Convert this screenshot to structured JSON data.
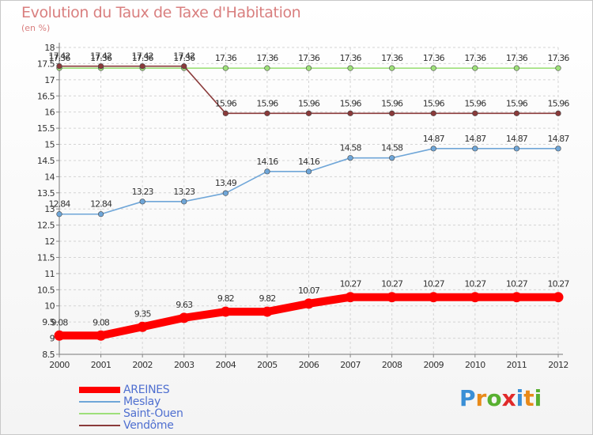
{
  "title": "Evolution du Taux de Taxe d'Habitation",
  "subtitle": "(en %)",
  "logo": {
    "letters": [
      "P",
      "r",
      "o",
      "x",
      "i",
      "t",
      "i"
    ],
    "colors": [
      "#3a8fd6",
      "#e88a1a",
      "#58b030",
      "#e02a2a",
      "#3a8fd6",
      "#e88a1a",
      "#58b030"
    ]
  },
  "chart_data": {
    "type": "line",
    "title": "Evolution du Taux de Taxe d'Habitation",
    "ylabel": "(en %)",
    "xlabel": "",
    "x": [
      "2000",
      "2001",
      "2002",
      "2003",
      "2004",
      "2005",
      "2006",
      "2007",
      "2008",
      "2009",
      "2010",
      "2011",
      "2012"
    ],
    "ylim": [
      8.5,
      18
    ],
    "yticks": [
      "8.5",
      "9",
      "9.5",
      "10",
      "10.5",
      "11",
      "11.5",
      "12",
      "12.5",
      "13",
      "13.5",
      "14",
      "14.5",
      "15",
      "15.5",
      "16",
      "16.5",
      "17",
      "17.5",
      "18"
    ],
    "grid": true,
    "legend_position": "bottom-left",
    "series": [
      {
        "name": "AREINES",
        "color": "#ff0000",
        "values": [
          9.08,
          9.08,
          9.35,
          9.63,
          9.82,
          9.82,
          10.07,
          10.27,
          10.27,
          10.27,
          10.27,
          10.27,
          10.27
        ],
        "labels": [
          "9.08",
          "9.08",
          "9.35",
          "9.63",
          "9.82",
          "9.82",
          "10.07",
          "10.27",
          "10.27",
          "10.27",
          "10.27",
          "10.27",
          "10.27"
        ]
      },
      {
        "name": "Meslay",
        "color": "#6fa6d8",
        "values": [
          12.84,
          12.84,
          13.23,
          13.23,
          13.49,
          14.16,
          14.16,
          14.58,
          14.58,
          14.87,
          14.87,
          14.87,
          14.87
        ],
        "labels": [
          "12.84",
          "12.84",
          "13.23",
          "13.23",
          "13.49",
          "14.16",
          "14.16",
          "14.58",
          "14.58",
          "14.87",
          "14.87",
          "14.87",
          "14.87"
        ]
      },
      {
        "name": "Saint-Ouen",
        "color": "#9ee07a",
        "values": [
          17.36,
          17.36,
          17.36,
          17.36,
          17.36,
          17.36,
          17.36,
          17.36,
          17.36,
          17.36,
          17.36,
          17.36,
          17.36
        ],
        "labels": [
          "17.36",
          "17.36",
          "17.36",
          "17.36",
          "17.36",
          "17.36",
          "17.36",
          "17.36",
          "17.36",
          "17.36",
          "17.36",
          "17.36",
          "17.36"
        ]
      },
      {
        "name": "Vendôme",
        "color": "#8a3a3a",
        "values": [
          17.42,
          17.42,
          17.42,
          17.42,
          15.96,
          15.96,
          15.96,
          15.96,
          15.96,
          15.96,
          15.96,
          15.96,
          15.96
        ],
        "labels": [
          "17.42",
          "17.42",
          "17.42",
          "17.42",
          "15.96",
          "15.96",
          "15.96",
          "15.96",
          "15.96",
          "15.96",
          "15.96",
          "15.96",
          "15.96"
        ]
      }
    ]
  }
}
